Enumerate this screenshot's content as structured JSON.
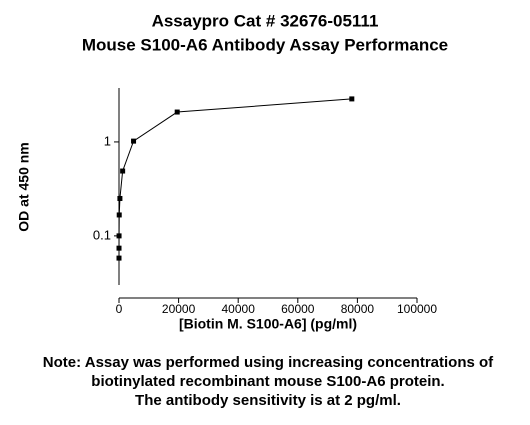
{
  "chart_data": {
    "type": "line",
    "title": [
      "Assaypro Cat # 32676-05111",
      "Mouse S100-A6 Antibody Assay Performance"
    ],
    "x_label": "[Biotin M. S100-A6] (pg/ml)",
    "y_label": "OD at 450 nm",
    "note": [
      "Note: Assay was performed using increasing concentrations of",
      "biotinylated recombinant mouse S100-A6 protein.",
      "The antibody sensitivity is at 2 pg/ml."
    ],
    "x": [
      1.2,
      4.8,
      19,
      76,
      305,
      1221,
      4883,
      19531,
      78125
    ],
    "values": [
      0.058,
      0.074,
      0.1,
      0.167,
      0.25,
      0.49,
      1.02,
      2.08,
      2.87
    ],
    "color": "#000000",
    "xlim": [
      0,
      100000
    ],
    "xticks": [
      0,
      20000,
      40000,
      60000,
      80000,
      100000
    ],
    "ylim": [
      0.03,
      3.75
    ],
    "yticks": [
      0.1,
      1
    ],
    "y_log": true
  }
}
